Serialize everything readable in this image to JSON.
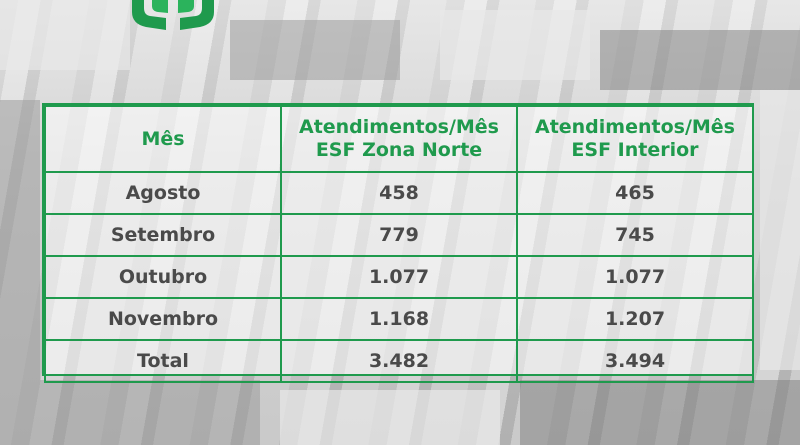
{
  "header": {
    "month_label": "Mês",
    "col2_line1": "Atendimentos/Mês",
    "col2_line2": "ESF Zona Norte",
    "col3_line1": "Atendimentos/Mês",
    "col3_line2": "ESF Interior"
  },
  "rows": [
    {
      "month": "Agosto",
      "norte": "458",
      "interior": "465"
    },
    {
      "month": "Setembro",
      "norte": "779",
      "interior": "745"
    },
    {
      "month": "Outubro",
      "norte": "1.077",
      "interior": "1.077"
    },
    {
      "month": "Novembro",
      "norte": "1.168",
      "interior": "1.207"
    },
    {
      "month": "Total",
      "norte": "3.482",
      "interior": "3.494"
    }
  ],
  "colors": {
    "accent": "#1f9a4d",
    "text": "#4a4a4a"
  },
  "icons": {
    "logo": "hands-logo-icon"
  }
}
